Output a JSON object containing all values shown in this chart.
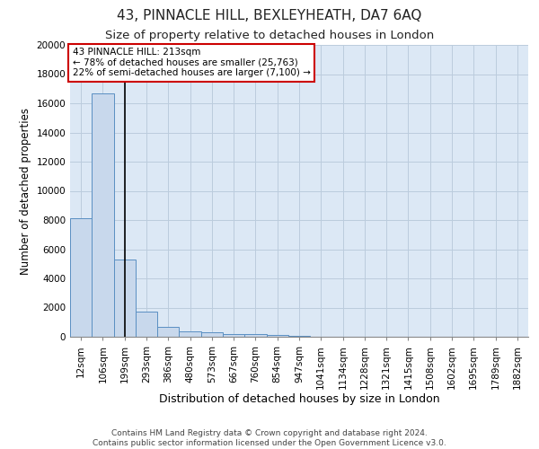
{
  "title": "43, PINNACLE HILL, BEXLEYHEATH, DA7 6AQ",
  "subtitle": "Size of property relative to detached houses in London",
  "xlabel": "Distribution of detached houses by size in London",
  "ylabel": "Number of detached properties",
  "footer_line1": "Contains HM Land Registry data © Crown copyright and database right 2024.",
  "footer_line2": "Contains public sector information licensed under the Open Government Licence v3.0.",
  "annotation_line1": "43 PINNACLE HILL: 213sqm",
  "annotation_line2": "← 78% of detached houses are smaller (25,763)",
  "annotation_line3": "22% of semi-detached houses are larger (7,100) →",
  "bar_labels": [
    "12sqm",
    "106sqm",
    "199sqm",
    "293sqm",
    "386sqm",
    "480sqm",
    "573sqm",
    "667sqm",
    "760sqm",
    "854sqm",
    "947sqm",
    "1041sqm",
    "1134sqm",
    "1228sqm",
    "1321sqm",
    "1415sqm",
    "1508sqm",
    "1602sqm",
    "1695sqm",
    "1789sqm",
    "1882sqm"
  ],
  "bar_values": [
    8100,
    16700,
    5300,
    1750,
    700,
    350,
    280,
    200,
    170,
    100,
    60,
    30,
    20,
    15,
    10,
    8,
    6,
    5,
    4,
    3,
    2
  ],
  "bar_color": "#c8d8ec",
  "bar_edge_color": "#5a8fc2",
  "vertical_line_index": 2,
  "vertical_line_color": "#000000",
  "annotation_box_edge_color": "#cc0000",
  "annotation_box_face_color": "#ffffff",
  "ylim": [
    0,
    20000
  ],
  "yticks": [
    0,
    2000,
    4000,
    6000,
    8000,
    10000,
    12000,
    14000,
    16000,
    18000,
    20000
  ],
  "grid_color": "#bbccdd",
  "background_color": "#dce8f5",
  "title_fontsize": 11,
  "subtitle_fontsize": 9.5,
  "xlabel_fontsize": 9,
  "ylabel_fontsize": 8.5,
  "tick_fontsize": 7.5,
  "annotation_fontsize": 7.5,
  "footer_fontsize": 6.5
}
